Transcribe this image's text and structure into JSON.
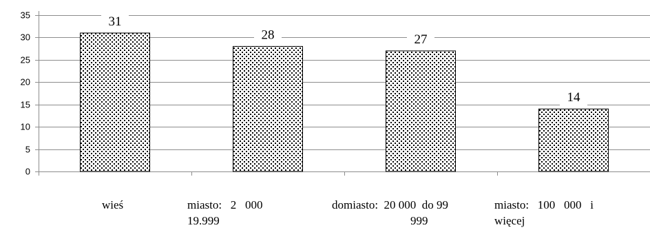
{
  "chart_data": {
    "type": "bar",
    "title": "",
    "xlabel": "",
    "ylabel": "",
    "categories": [
      [
        "wieś"
      ],
      [
        "miasto:   2   000",
        "19.999"
      ],
      [
        "domiasto:  20 000  do 99",
        "999"
      ],
      [
        "miasto:   100   000   i",
        "więcej"
      ]
    ],
    "values": [
      31,
      28,
      27,
      14
    ],
    "data_labels": [
      "31",
      "28",
      "27",
      "14"
    ],
    "ylim": [
      0,
      35
    ],
    "yticks": [
      "0",
      "5",
      "10",
      "15",
      "20",
      "25",
      "30",
      "35"
    ],
    "grid": true,
    "legend": "none",
    "bar_pattern": "stipple"
  }
}
